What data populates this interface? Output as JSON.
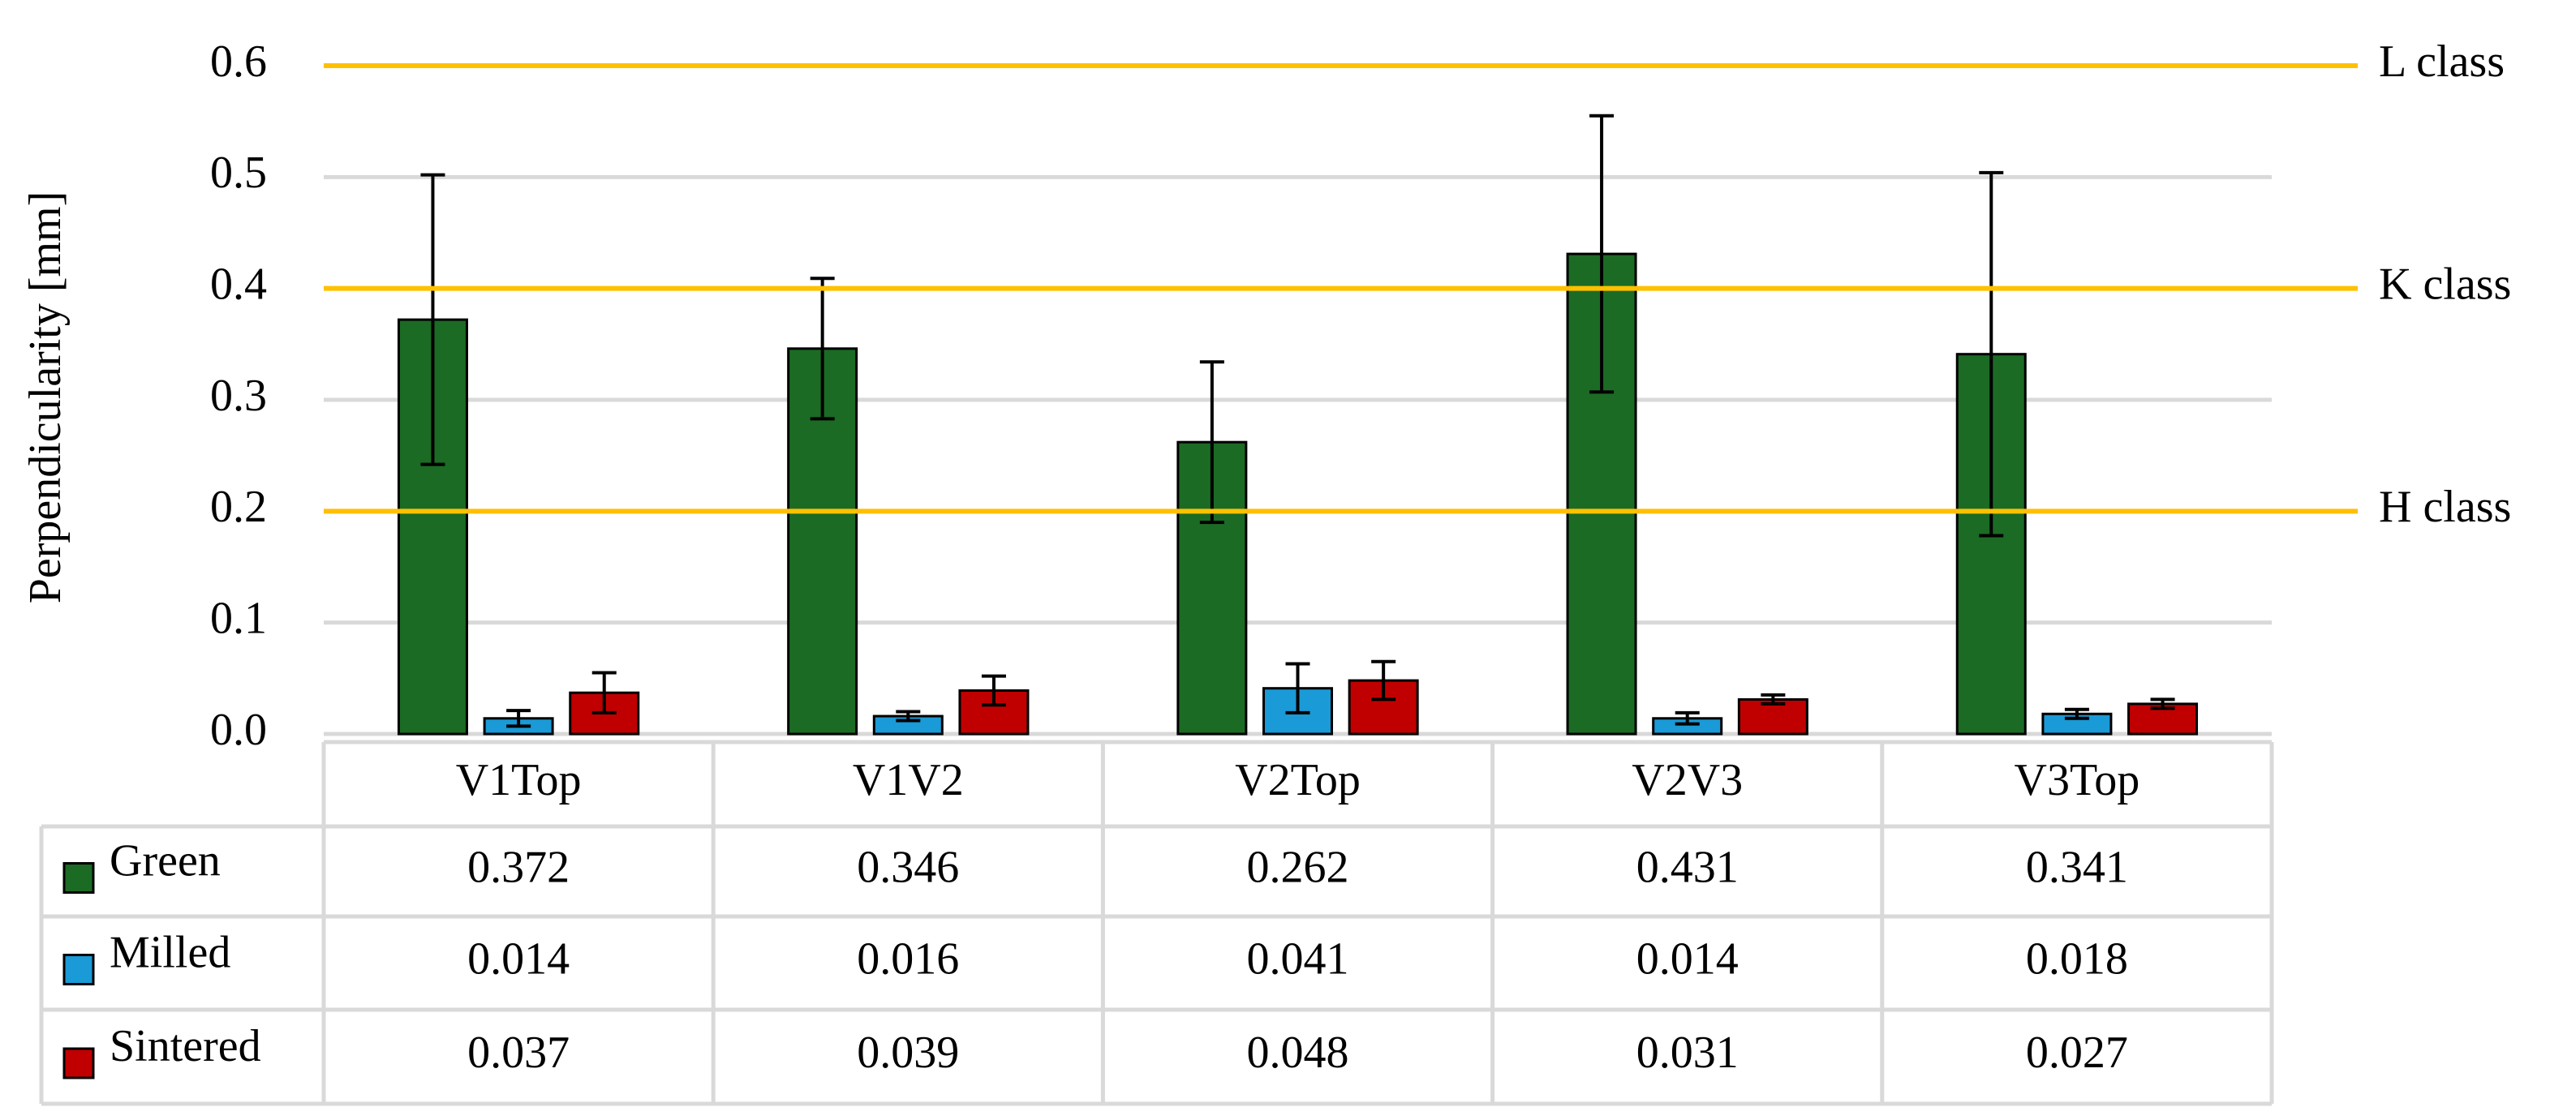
{
  "chart_data": {
    "type": "bar",
    "y_label": "Perpendicularity [mm]",
    "categories": [
      "V1Top",
      "V1V2",
      "V2Top",
      "V2V3",
      "V3Top"
    ],
    "series": [
      {
        "name": "Green",
        "color": "#1b6b24",
        "values": [
          0.372,
          0.346,
          0.262,
          0.431,
          0.341
        ],
        "errors": [
          0.13,
          0.063,
          0.072,
          0.124,
          0.163
        ]
      },
      {
        "name": "Milled",
        "color": "#1a9ad6",
        "values": [
          0.014,
          0.016,
          0.041,
          0.014,
          0.018
        ],
        "errors": [
          0.007,
          0.004,
          0.022,
          0.005,
          0.004
        ]
      },
      {
        "name": "Sintered",
        "color": "#c00000",
        "values": [
          0.037,
          0.039,
          0.048,
          0.031,
          0.027
        ],
        "errors": [
          0.018,
          0.013,
          0.017,
          0.004,
          0.004
        ]
      }
    ],
    "reference_lines": [
      {
        "value": 0.6,
        "label": "L class"
      },
      {
        "value": 0.4,
        "label": "K class"
      },
      {
        "value": 0.2,
        "label": "H class"
      }
    ],
    "reference_color": "#ffc000",
    "ylim": [
      0,
      0.6
    ],
    "yticks": [
      {
        "value": 0,
        "label": "0.0"
      },
      0.1,
      0.2,
      0.3,
      0.4,
      0.5,
      0.6
    ],
    "grid": true,
    "data_table": true
  }
}
